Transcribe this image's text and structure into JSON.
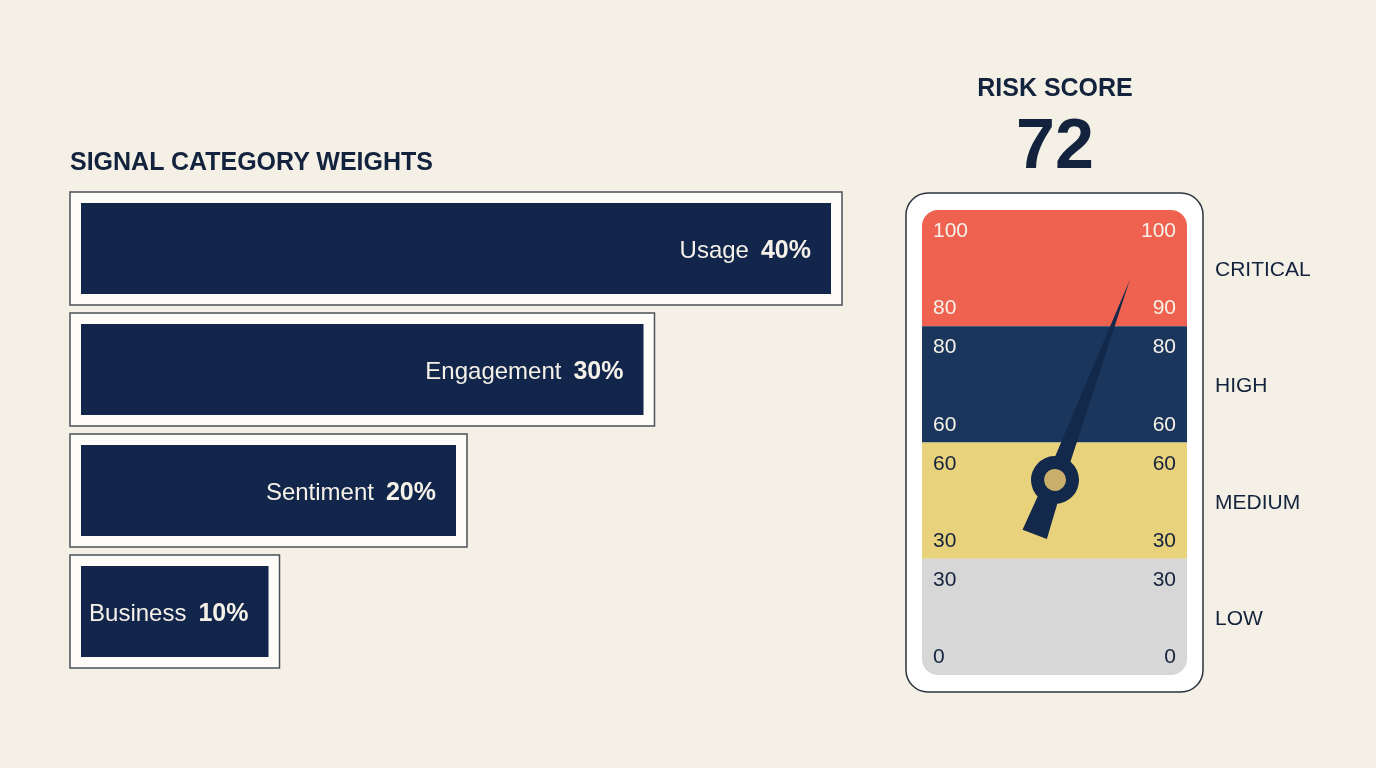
{
  "chart_data": [
    {
      "type": "bar",
      "orientation": "horizontal",
      "title": "SIGNAL CATEGORY WEIGHTS",
      "categories": [
        "Usage",
        "Engagement",
        "Sentiment",
        "Business"
      ],
      "values": [
        40,
        30,
        20,
        10
      ],
      "value_labels": [
        "40%",
        "30%",
        "20%",
        "10%"
      ],
      "color": "#11264a"
    },
    {
      "type": "other",
      "title": "RISK SCORE",
      "categories": [
        "CRITICAL",
        "HIGH",
        "MEDIUM",
        "LOW"
      ],
      "colors": [
        "#ef6250",
        "#1b365d",
        "#e9d27c",
        "#d7d7d7"
      ],
      "annotations": [
        "72",
        "100",
        "100",
        "80",
        "90",
        "80",
        "80",
        "60",
        "60",
        "60",
        "60",
        "30",
        "30",
        "30",
        "30",
        "0",
        "0"
      ]
    }
  ]
}
